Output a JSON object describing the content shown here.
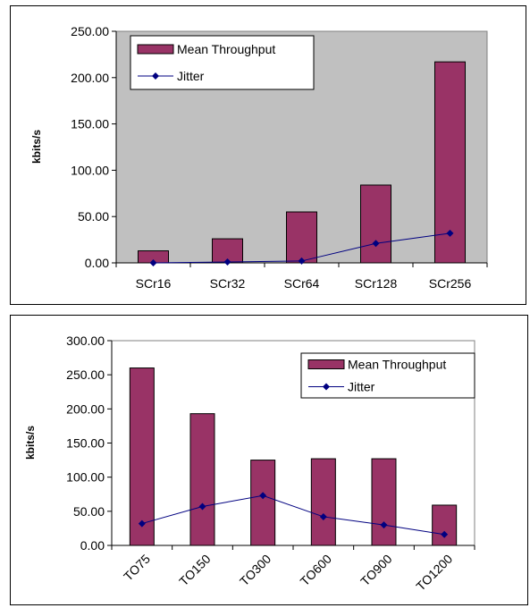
{
  "chart_data": [
    {
      "type": "bar",
      "title": "",
      "xlabel": "",
      "ylabel": "kbits/s",
      "ylim": [
        0,
        250
      ],
      "yticks": [
        "0.00",
        "50.00",
        "100.00",
        "150.00",
        "200.00",
        "250.00"
      ],
      "categories": [
        "SCr16",
        "SCr32",
        "SCr64",
        "SCr128",
        "SCr256"
      ],
      "series": [
        {
          "name": "Mean Throughput",
          "type": "bar",
          "color": "#993366",
          "values": [
            13,
            26,
            55,
            84,
            217
          ]
        },
        {
          "name": "Jitter",
          "type": "line",
          "color": "#000080",
          "values": [
            0,
            1,
            2,
            21,
            32
          ]
        }
      ],
      "legend": "top-left",
      "plot_background": "#c0c0c0",
      "grid": false
    },
    {
      "type": "bar",
      "title": "",
      "xlabel": "",
      "ylabel": "kbits/s",
      "ylim": [
        0,
        300
      ],
      "yticks": [
        "0.00",
        "50.00",
        "100.00",
        "150.00",
        "200.00",
        "250.00",
        "300.00"
      ],
      "categories": [
        "TO75",
        "TO150",
        "TO300",
        "TO600",
        "TO900",
        "TO1200"
      ],
      "series": [
        {
          "name": "Mean Throughput",
          "type": "bar",
          "color": "#993366",
          "values": [
            260,
            193,
            125,
            127,
            127,
            59
          ]
        },
        {
          "name": "Jitter",
          "type": "line",
          "color": "#000080",
          "values": [
            32,
            57,
            73,
            42,
            30,
            16
          ]
        }
      ],
      "legend": "top-right",
      "plot_background": "#ffffff",
      "grid": false
    }
  ]
}
